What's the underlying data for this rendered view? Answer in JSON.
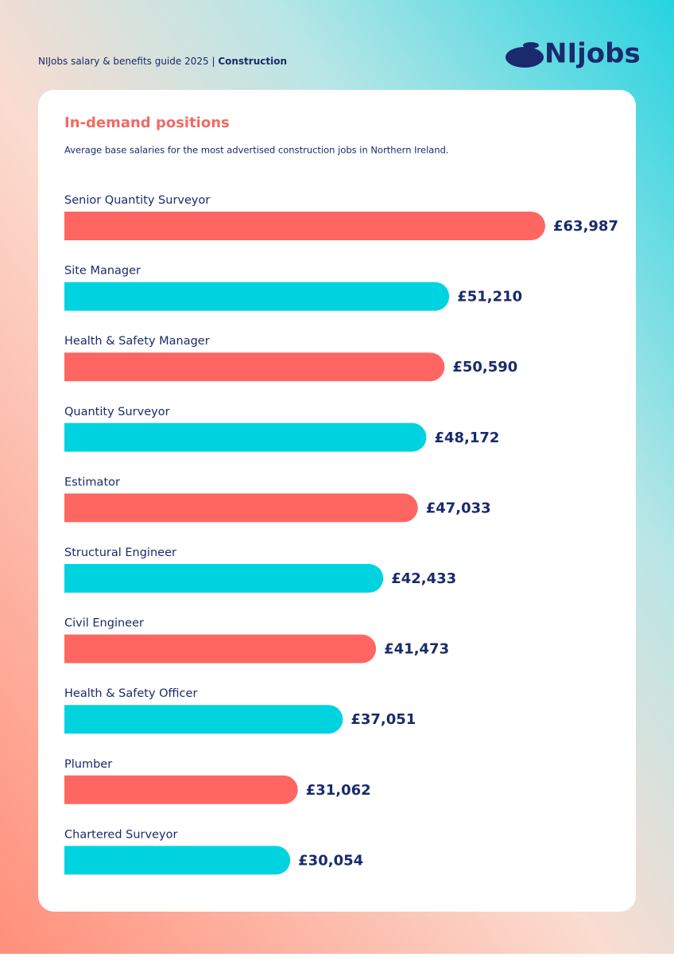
{
  "header": {
    "guide": "NIJobs salary & benefits guide 2025 |",
    "section": "Construction",
    "logo": "NIjobs"
  },
  "chart_data": {
    "type": "bar",
    "orientation": "horizontal",
    "title": "In-demand positions",
    "subtitle": "Average base salaries for the most advertised construction jobs in Northern Ireland.",
    "categories": [
      "Senior Quantity Surveyor",
      "Site Manager",
      "Health & Safety Manager",
      "Quantity Surveyor",
      "Estimator",
      "Structural Engineer",
      "Civil Engineer",
      "Health & Safety Officer",
      "Plumber",
      "Chartered Surveyor"
    ],
    "values": [
      63987,
      51210,
      50590,
      48172,
      47033,
      42433,
      41473,
      37051,
      31062,
      30054
    ],
    "value_labels": [
      "£63,987",
      "£51,210",
      "£50,590",
      "£48,172",
      "£47,033",
      "£42,433",
      "£41,473",
      "£37,051",
      "£31,062",
      "£30,054"
    ],
    "colors": [
      "#ff6661",
      "#00d3e0",
      "#ff6661",
      "#00d3e0",
      "#ff6661",
      "#00d3e0",
      "#ff6661",
      "#00d3e0",
      "#ff6661",
      "#00d3e0"
    ]
  }
}
